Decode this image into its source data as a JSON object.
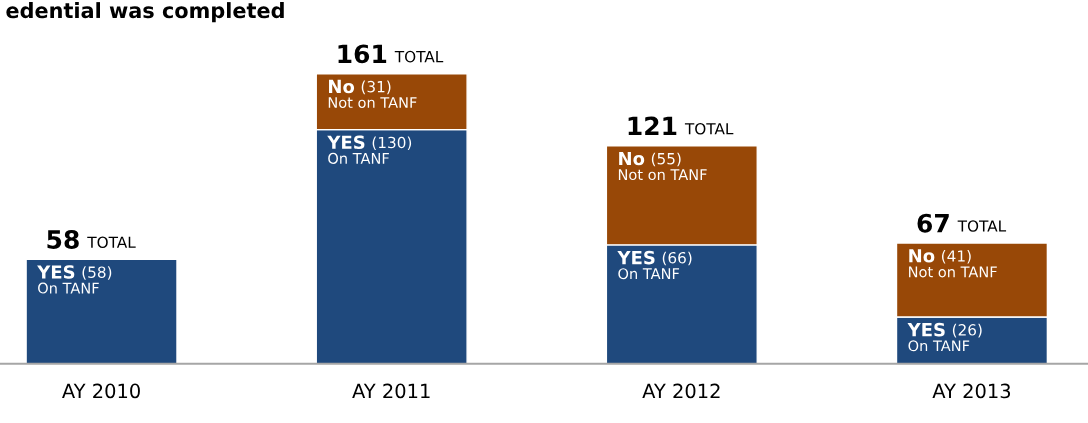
{
  "chart_data": {
    "type": "bar",
    "stacked": true,
    "title": "edential was completed",
    "categories": [
      "AY 2010",
      "AY 2011",
      "AY 2012",
      "AY 2013"
    ],
    "series": [
      {
        "name": "YES",
        "color": "#1f497d",
        "values": [
          58,
          130,
          66,
          26
        ],
        "value_labels": [
          "(58)\nOn TANF",
          "(130)\nOn TANF",
          "(66)\nOn TANF",
          "(26)\nOn TANF"
        ]
      },
      {
        "name": "No",
        "color": "#984807",
        "values": [
          null,
          31,
          55,
          41
        ],
        "value_labels": [
          null,
          "(31)\nNot on TANF",
          "(55)\nNot on TANF",
          "(41)\nNot on TANF"
        ]
      }
    ],
    "totals": [
      "58 TOTAL",
      "161 TOTAL",
      "121 TOTAL",
      "67 TOTAL"
    ],
    "grid": false,
    "legend": false
  }
}
